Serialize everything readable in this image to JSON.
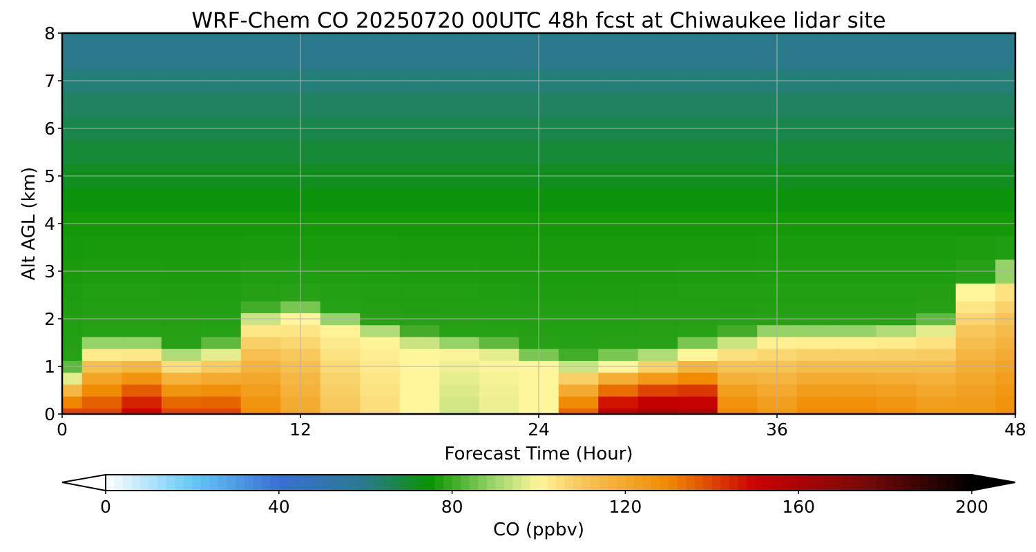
{
  "chart_data": {
    "type": "heatmap",
    "title": "WRF-Chem CO  20250720 00UTC 48h fcst at Chiwaukee lidar site",
    "xlabel": "Forecast Time (Hour)",
    "ylabel": "Alt AGL (km)",
    "xlim": [
      0,
      48
    ],
    "ylim": [
      0,
      8
    ],
    "xticks": [
      "0",
      "12",
      "24",
      "36",
      "48"
    ],
    "yticks": [
      "0",
      "1",
      "2",
      "3",
      "4",
      "5",
      "6",
      "7",
      "8"
    ],
    "grid": true,
    "x": [
      0,
      2,
      4,
      6,
      8,
      10,
      12,
      14,
      16,
      18,
      20,
      22,
      24,
      26,
      28,
      30,
      32,
      34,
      36,
      38,
      40,
      42,
      44,
      46,
      48
    ],
    "y": [
      0,
      0.25,
      0.5,
      0.75,
      1,
      1.25,
      1.5,
      1.75,
      2,
      2.25,
      2.5,
      3,
      3.5,
      4,
      4.5,
      5,
      5.5,
      6,
      6.5,
      7,
      7.5,
      8
    ],
    "surface_co_ppbv": [
      140,
      140,
      150,
      140,
      140,
      128,
      120,
      110,
      105,
      100,
      95,
      98,
      100,
      135,
      155,
      160,
      158,
      130,
      125,
      130,
      130,
      128,
      125,
      125,
      128
    ],
    "layer_top_km": [
      0.7,
      1.3,
      1.3,
      1.1,
      1.2,
      1.9,
      2.0,
      1.8,
      1.6,
      1.4,
      1.3,
      1.2,
      1.0,
      0.9,
      1.0,
      1.1,
      1.25,
      1.4,
      1.55,
      1.55,
      1.55,
      1.6,
      1.7,
      2.5,
      2.8
    ],
    "colorbar": {
      "label": "CO  (ppbv)",
      "min": 0,
      "max": 200,
      "extend": "both",
      "ticks": [
        "0",
        "40",
        "80",
        "120",
        "160",
        "200"
      ],
      "colormap_stops": [
        {
          "v": 0,
          "c": "#ffffff"
        },
        {
          "v": 20,
          "c": "#66c8f5"
        },
        {
          "v": 40,
          "c": "#3a6fd4"
        },
        {
          "v": 60,
          "c": "#2a7a8c"
        },
        {
          "v": 75,
          "c": "#0a9400"
        },
        {
          "v": 90,
          "c": "#9fd66e"
        },
        {
          "v": 100,
          "c": "#fff59a"
        },
        {
          "v": 110,
          "c": "#f7c65a"
        },
        {
          "v": 130,
          "c": "#f08a00"
        },
        {
          "v": 150,
          "c": "#cc0000"
        },
        {
          "v": 175,
          "c": "#7a0a0a"
        },
        {
          "v": 200,
          "c": "#000000"
        }
      ]
    }
  }
}
